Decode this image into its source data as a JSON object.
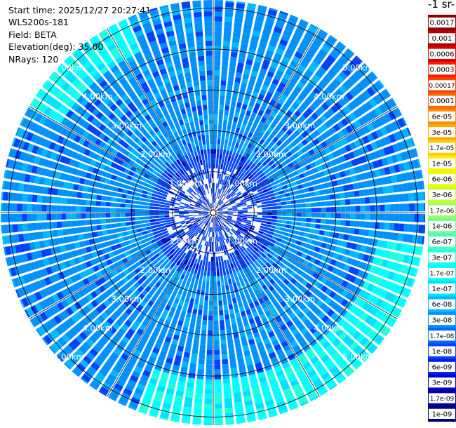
{
  "info": {
    "start_time": "Start time: 2025/12/27 20:27:41",
    "instrument": "WLS200s-181",
    "field": "Field: BETA",
    "elevation": "Elevation(deg): 35.00",
    "nrays": "NRays: 120"
  },
  "colorbar": {
    "title": "-1 sr-",
    "labels": [
      "0.0017",
      "0.001",
      "0.0006",
      "0.0003",
      "0.00017",
      "0.0001",
      "6e-05",
      "3e-05",
      "1.7e-05",
      "1e-05",
      "6e-06",
      "3e-06",
      "1.7e-06",
      "1e-06",
      "6e-07",
      "3e-07",
      "1.7e-07",
      "1e-07",
      "6e-08",
      "3e-08",
      "1.7e-08",
      "1e-08",
      "6e-09",
      "3e-09",
      "1.7e-09",
      "1e-09"
    ],
    "colors": [
      "#8a0000",
      "#b00000",
      "#d80000",
      "#ff1a00",
      "#ff4400",
      "#ff6a00",
      "#ff8c00",
      "#ffaa00",
      "#ffcc00",
      "#ffee00",
      "#e8ff00",
      "#c8ff30",
      "#a0ff60",
      "#70ff90",
      "#40ffc0",
      "#20ffe0",
      "#00ffff",
      "#00e0ff",
      "#00b8ff",
      "#0090ff",
      "#0068ff",
      "#0040ff",
      "#0020e0",
      "#0000c8",
      "#0000a0",
      "#000078"
    ]
  },
  "chart_data": {
    "type": "heatmap",
    "projection": "polar",
    "field": "BETA",
    "n_rays": 120,
    "elevation_deg": 35.0,
    "range_rings_km": [
      1,
      2,
      3,
      4,
      5
    ],
    "ring_labels": [
      "1.00km",
      "2.00km",
      "3.00km",
      "4.00km",
      "5.00km"
    ],
    "max_range_km": 5.2,
    "color_scale": "log",
    "value_range": [
      1e-09,
      0.0017
    ],
    "features": [
      {
        "description_key": "enhanced",
        "azimuth_range_deg": [
          100,
          200
        ],
        "range_km": [
          4.0,
          5.2
        ],
        "value": 1.7e-07
      },
      {
        "description_key": "enhanced",
        "azimuth_range_deg": [
          300,
          335
        ],
        "range_km": [
          4.3,
          5.2
        ],
        "value": 1.7e-07
      }
    ],
    "background_value": 3e-08,
    "near_value": 1e-08
  }
}
